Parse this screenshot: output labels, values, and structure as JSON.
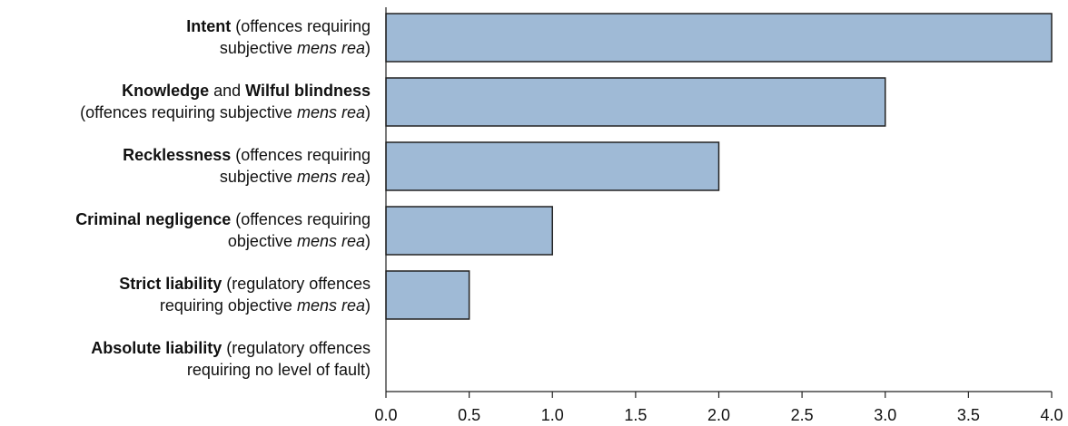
{
  "chart_data": {
    "type": "bar",
    "orientation": "horizontal",
    "title": "",
    "xlabel": "",
    "ylabel": "",
    "xlim": [
      0,
      4
    ],
    "x_ticks": [
      "0.0",
      "0.5",
      "1.0",
      "1.5",
      "2.0",
      "2.5",
      "3.0",
      "3.5",
      "4.0"
    ],
    "grid": false,
    "bar_color": "#9fbad6",
    "bar_edge_color": "#222222",
    "categories": [
      {
        "name": "Intent",
        "lines": [
          [
            {
              "t": "Intent",
              "s": "b"
            },
            {
              "t": " (offences requiring",
              "s": ""
            }
          ],
          [
            {
              "t": "subjective ",
              "s": ""
            },
            {
              "t": "mens rea",
              "s": "i"
            },
            {
              "t": ")",
              "s": ""
            }
          ]
        ],
        "value": 4.0
      },
      {
        "name": "Knowledge and Wilful blindness",
        "lines": [
          [
            {
              "t": "Knowledge",
              "s": "b"
            },
            {
              "t": " and ",
              "s": ""
            },
            {
              "t": "Wilful blindness",
              "s": "b"
            }
          ],
          [
            {
              "t": "(offences requiring subjective ",
              "s": ""
            },
            {
              "t": "mens rea",
              "s": "i"
            },
            {
              "t": ")",
              "s": ""
            }
          ]
        ],
        "value": 3.0
      },
      {
        "name": "Recklessness",
        "lines": [
          [
            {
              "t": "Recklessness",
              "s": "b"
            },
            {
              "t": " (offences requiring",
              "s": ""
            }
          ],
          [
            {
              "t": "subjective ",
              "s": ""
            },
            {
              "t": "mens rea",
              "s": "i"
            },
            {
              "t": ")",
              "s": ""
            }
          ]
        ],
        "value": 2.0
      },
      {
        "name": "Criminal negligence",
        "lines": [
          [
            {
              "t": "Criminal negligence",
              "s": "b"
            },
            {
              "t": " (offences requiring",
              "s": ""
            }
          ],
          [
            {
              "t": "objective ",
              "s": ""
            },
            {
              "t": "mens rea",
              "s": "i"
            },
            {
              "t": ")",
              "s": ""
            }
          ]
        ],
        "value": 1.0
      },
      {
        "name": "Strict liability",
        "lines": [
          [
            {
              "t": "Strict liability",
              "s": "b"
            },
            {
              "t": " (regulatory offences",
              "s": ""
            }
          ],
          [
            {
              "t": "requiring objective ",
              "s": ""
            },
            {
              "t": "mens rea",
              "s": "i"
            },
            {
              "t": ")",
              "s": ""
            }
          ]
        ],
        "value": 0.5
      },
      {
        "name": "Absolute liability",
        "lines": [
          [
            {
              "t": "Absolute liability",
              "s": "b"
            },
            {
              "t": " (regulatory offences",
              "s": ""
            }
          ],
          [
            {
              "t": "requiring no level of fault)",
              "s": ""
            }
          ]
        ],
        "value": 0.0
      }
    ]
  }
}
